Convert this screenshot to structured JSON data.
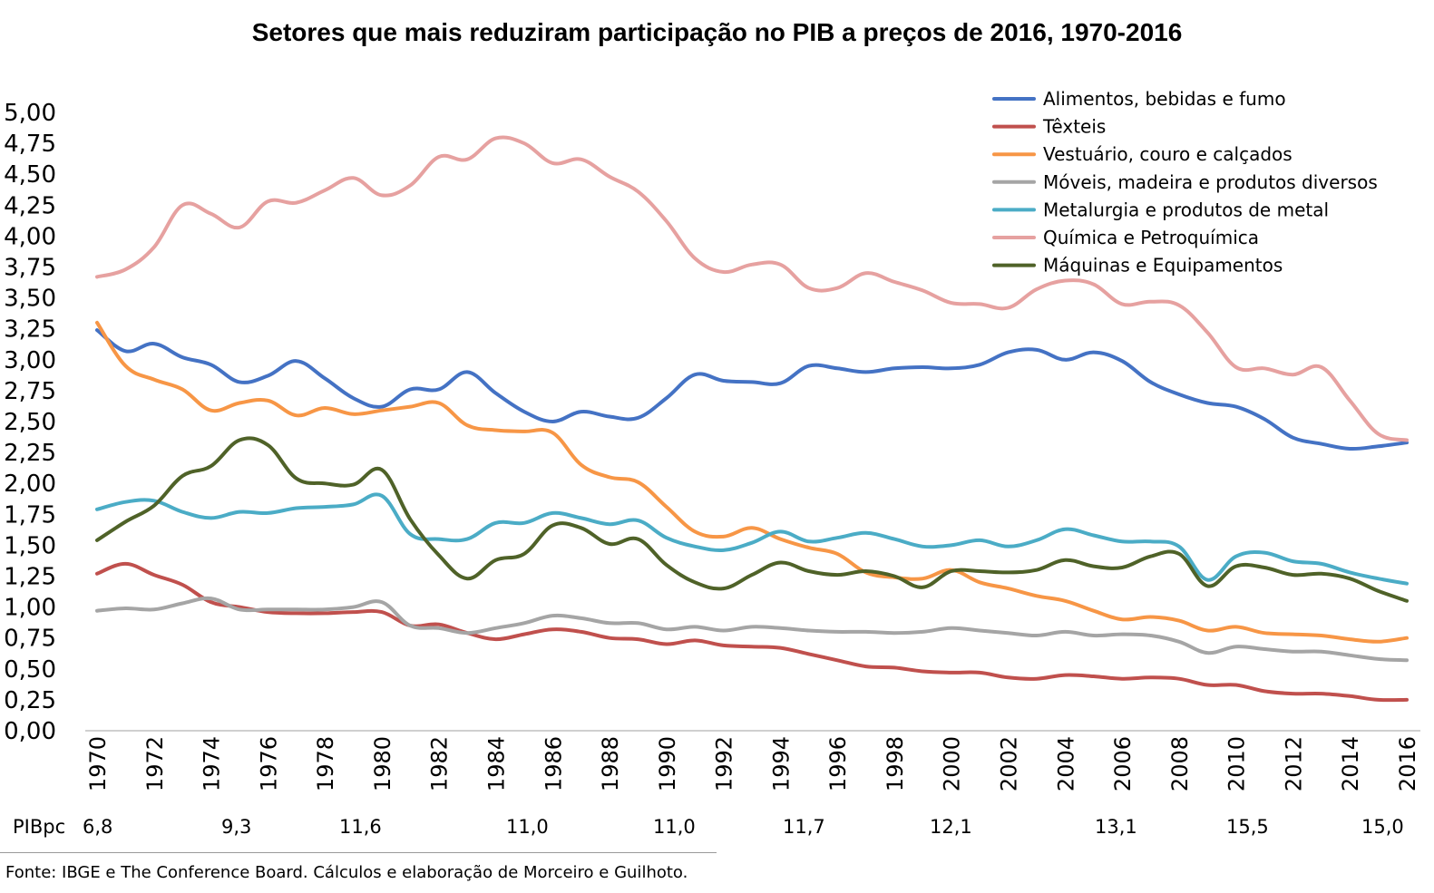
{
  "chart_data": {
    "type": "line",
    "title": "Setores que mais reduziram participação no PIB a preços de 2016, 1970-2016",
    "xlabel": "",
    "ylabel": "",
    "ylim": [
      0,
      5
    ],
    "y_ticks": [
      "0,00",
      "0,25",
      "0,50",
      "0,75",
      "1,00",
      "1,25",
      "1,50",
      "1,75",
      "2,00",
      "2,25",
      "2,50",
      "2,75",
      "3,00",
      "3,25",
      "3,50",
      "3,75",
      "4,00",
      "4,25",
      "4,50",
      "4,75",
      "5,00"
    ],
    "x_tick_labels": [
      "1970",
      "1972",
      "1974",
      "1976",
      "1978",
      "1980",
      "1982",
      "1984",
      "1986",
      "1988",
      "1990",
      "1992",
      "1994",
      "1996",
      "1998",
      "2000",
      "2002",
      "2004",
      "2006",
      "2008",
      "2010",
      "2012",
      "2014",
      "2016"
    ],
    "x": [
      1970,
      1971,
      1972,
      1973,
      1974,
      1975,
      1976,
      1977,
      1978,
      1979,
      1980,
      1981,
      1982,
      1983,
      1984,
      1985,
      1986,
      1987,
      1988,
      1989,
      1990,
      1991,
      1992,
      1993,
      1994,
      1995,
      1996,
      1997,
      1998,
      1999,
      2000,
      2001,
      2002,
      2003,
      2004,
      2005,
      2006,
      2007,
      2008,
      2009,
      2010,
      2011,
      2012,
      2013,
      2014,
      2015,
      2016
    ],
    "grid": false,
    "legend_position": "top-right",
    "series": [
      {
        "name": "Alimentos, bebidas e fumo",
        "color": "#4472C4",
        "values": [
          3.24,
          3.07,
          3.13,
          3.02,
          2.96,
          2.82,
          2.87,
          2.99,
          2.85,
          2.69,
          2.62,
          2.76,
          2.76,
          2.9,
          2.73,
          2.58,
          2.5,
          2.58,
          2.54,
          2.53,
          2.69,
          2.88,
          2.83,
          2.82,
          2.81,
          2.95,
          2.93,
          2.9,
          2.93,
          2.94,
          2.93,
          2.96,
          3.06,
          3.08,
          3.0,
          3.06,
          2.99,
          2.82,
          2.72,
          2.65,
          2.62,
          2.52,
          2.37,
          2.32,
          2.28,
          2.3,
          2.33
        ]
      },
      {
        "name": "Têxteis",
        "color": "#C0504D",
        "values": [
          1.27,
          1.35,
          1.26,
          1.18,
          1.04,
          1.0,
          0.96,
          0.95,
          0.95,
          0.96,
          0.96,
          0.85,
          0.86,
          0.79,
          0.74,
          0.78,
          0.82,
          0.8,
          0.75,
          0.74,
          0.7,
          0.73,
          0.69,
          0.68,
          0.67,
          0.62,
          0.57,
          0.52,
          0.51,
          0.48,
          0.47,
          0.47,
          0.43,
          0.42,
          0.45,
          0.44,
          0.42,
          0.43,
          0.42,
          0.37,
          0.37,
          0.32,
          0.3,
          0.3,
          0.28,
          0.25,
          0.25
        ]
      },
      {
        "name": "Vestuário, couro e calçados",
        "color": "#F79646",
        "values": [
          3.3,
          2.95,
          2.84,
          2.76,
          2.59,
          2.65,
          2.67,
          2.55,
          2.61,
          2.56,
          2.59,
          2.62,
          2.65,
          2.47,
          2.43,
          2.42,
          2.41,
          2.15,
          2.05,
          2.01,
          1.81,
          1.61,
          1.57,
          1.64,
          1.55,
          1.48,
          1.43,
          1.28,
          1.24,
          1.23,
          1.3,
          1.2,
          1.15,
          1.09,
          1.05,
          0.97,
          0.9,
          0.92,
          0.89,
          0.81,
          0.84,
          0.79,
          0.78,
          0.77,
          0.74,
          0.72,
          0.75
        ]
      },
      {
        "name": "Móveis, madeira e produtos diversos",
        "color": "#A5A5A5",
        "values": [
          0.97,
          0.99,
          0.98,
          1.03,
          1.07,
          0.98,
          0.98,
          0.98,
          0.98,
          1.0,
          1.04,
          0.85,
          0.83,
          0.79,
          0.83,
          0.87,
          0.93,
          0.91,
          0.87,
          0.87,
          0.82,
          0.84,
          0.81,
          0.84,
          0.83,
          0.81,
          0.8,
          0.8,
          0.79,
          0.8,
          0.83,
          0.81,
          0.79,
          0.77,
          0.8,
          0.77,
          0.78,
          0.77,
          0.72,
          0.63,
          0.68,
          0.66,
          0.64,
          0.64,
          0.61,
          0.58,
          0.57
        ]
      },
      {
        "name": "Metalurgia e produtos de metal",
        "color": "#4BACC6",
        "values": [
          1.79,
          1.85,
          1.86,
          1.77,
          1.72,
          1.77,
          1.76,
          1.8,
          1.81,
          1.83,
          1.9,
          1.59,
          1.55,
          1.55,
          1.68,
          1.68,
          1.76,
          1.72,
          1.67,
          1.7,
          1.56,
          1.49,
          1.46,
          1.52,
          1.61,
          1.53,
          1.56,
          1.6,
          1.55,
          1.49,
          1.5,
          1.54,
          1.49,
          1.54,
          1.63,
          1.58,
          1.53,
          1.53,
          1.49,
          1.22,
          1.41,
          1.44,
          1.37,
          1.35,
          1.28,
          1.23,
          1.19
        ]
      },
      {
        "name": "Química e Petroquímica",
        "color": "#E6A1A0",
        "values": [
          3.67,
          3.73,
          3.91,
          4.25,
          4.18,
          4.07,
          4.28,
          4.27,
          4.37,
          4.47,
          4.33,
          4.41,
          4.64,
          4.62,
          4.79,
          4.75,
          4.59,
          4.62,
          4.48,
          4.36,
          4.12,
          3.82,
          3.71,
          3.77,
          3.77,
          3.58,
          3.58,
          3.7,
          3.63,
          3.56,
          3.46,
          3.45,
          3.42,
          3.57,
          3.64,
          3.61,
          3.45,
          3.47,
          3.44,
          3.22,
          2.94,
          2.93,
          2.88,
          2.94,
          2.67,
          2.4,
          2.35
        ]
      },
      {
        "name": "Máquinas e Equipamentos",
        "color": "#4F6228",
        "values": [
          1.54,
          1.69,
          1.82,
          2.06,
          2.14,
          2.35,
          2.31,
          2.04,
          2.0,
          1.99,
          2.11,
          1.71,
          1.42,
          1.23,
          1.38,
          1.43,
          1.66,
          1.64,
          1.51,
          1.55,
          1.34,
          1.2,
          1.15,
          1.26,
          1.36,
          1.29,
          1.26,
          1.29,
          1.25,
          1.16,
          1.29,
          1.29,
          1.28,
          1.3,
          1.38,
          1.33,
          1.32,
          1.41,
          1.43,
          1.17,
          1.33,
          1.32,
          1.26,
          1.27,
          1.23,
          1.13,
          1.05
        ]
      }
    ],
    "pibpc": {
      "label": "PIBpc",
      "values": [
        "6,8",
        "9,3",
        "11,6",
        "11,0",
        "11,0",
        "11,7",
        "12,1",
        "13,1",
        "15,5",
        "15,0"
      ]
    },
    "source": "Fonte: IBGE e The Conference Board. Cálculos e elaboração de Morceiro e Guilhoto."
  }
}
